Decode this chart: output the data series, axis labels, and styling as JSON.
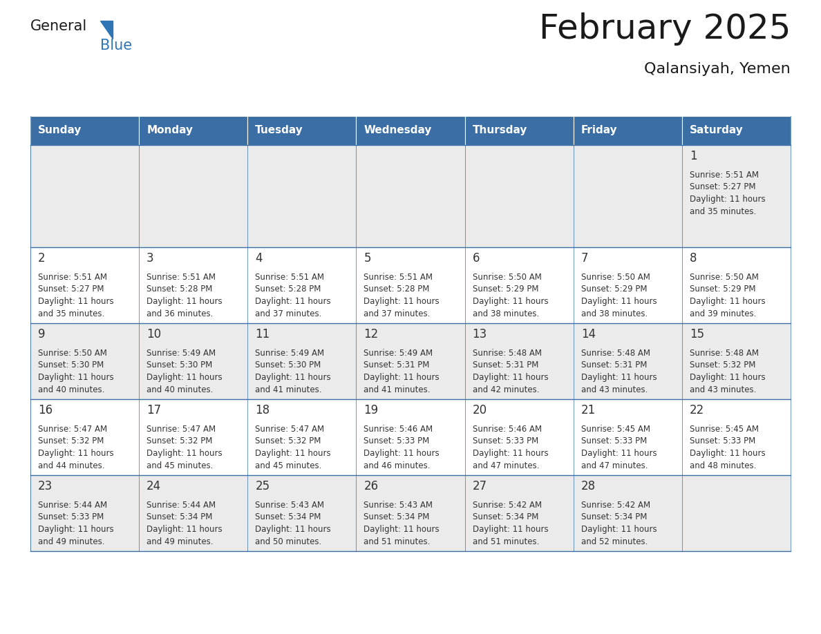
{
  "title": "February 2025",
  "subtitle": "Qalansiyah, Yemen",
  "days_of_week": [
    "Sunday",
    "Monday",
    "Tuesday",
    "Wednesday",
    "Thursday",
    "Friday",
    "Saturday"
  ],
  "header_bg": "#3A6EA5",
  "header_text_color": "#FFFFFF",
  "cell_bg_gray": "#EBEBEB",
  "cell_bg_white": "#FFFFFF",
  "cell_border_color": "#3A6EA5",
  "text_color": "#333333",
  "title_color": "#1a1a1a",
  "logo_general_color": "#1a1a1a",
  "logo_blue_color": "#2E75B6",
  "logo_triangle_color": "#2E75B6",
  "calendar_data": [
    [
      null,
      null,
      null,
      null,
      null,
      null,
      {
        "day": 1,
        "sunrise": "5:51 AM",
        "sunset": "5:27 PM",
        "daylight": "11 hours\nand 35 minutes."
      }
    ],
    [
      {
        "day": 2,
        "sunrise": "5:51 AM",
        "sunset": "5:27 PM",
        "daylight": "11 hours\nand 35 minutes."
      },
      {
        "day": 3,
        "sunrise": "5:51 AM",
        "sunset": "5:28 PM",
        "daylight": "11 hours\nand 36 minutes."
      },
      {
        "day": 4,
        "sunrise": "5:51 AM",
        "sunset": "5:28 PM",
        "daylight": "11 hours\nand 37 minutes."
      },
      {
        "day": 5,
        "sunrise": "5:51 AM",
        "sunset": "5:28 PM",
        "daylight": "11 hours\nand 37 minutes."
      },
      {
        "day": 6,
        "sunrise": "5:50 AM",
        "sunset": "5:29 PM",
        "daylight": "11 hours\nand 38 minutes."
      },
      {
        "day": 7,
        "sunrise": "5:50 AM",
        "sunset": "5:29 PM",
        "daylight": "11 hours\nand 38 minutes."
      },
      {
        "day": 8,
        "sunrise": "5:50 AM",
        "sunset": "5:29 PM",
        "daylight": "11 hours\nand 39 minutes."
      }
    ],
    [
      {
        "day": 9,
        "sunrise": "5:50 AM",
        "sunset": "5:30 PM",
        "daylight": "11 hours\nand 40 minutes."
      },
      {
        "day": 10,
        "sunrise": "5:49 AM",
        "sunset": "5:30 PM",
        "daylight": "11 hours\nand 40 minutes."
      },
      {
        "day": 11,
        "sunrise": "5:49 AM",
        "sunset": "5:30 PM",
        "daylight": "11 hours\nand 41 minutes."
      },
      {
        "day": 12,
        "sunrise": "5:49 AM",
        "sunset": "5:31 PM",
        "daylight": "11 hours\nand 41 minutes."
      },
      {
        "day": 13,
        "sunrise": "5:48 AM",
        "sunset": "5:31 PM",
        "daylight": "11 hours\nand 42 minutes."
      },
      {
        "day": 14,
        "sunrise": "5:48 AM",
        "sunset": "5:31 PM",
        "daylight": "11 hours\nand 43 minutes."
      },
      {
        "day": 15,
        "sunrise": "5:48 AM",
        "sunset": "5:32 PM",
        "daylight": "11 hours\nand 43 minutes."
      }
    ],
    [
      {
        "day": 16,
        "sunrise": "5:47 AM",
        "sunset": "5:32 PM",
        "daylight": "11 hours\nand 44 minutes."
      },
      {
        "day": 17,
        "sunrise": "5:47 AM",
        "sunset": "5:32 PM",
        "daylight": "11 hours\nand 45 minutes."
      },
      {
        "day": 18,
        "sunrise": "5:47 AM",
        "sunset": "5:32 PM",
        "daylight": "11 hours\nand 45 minutes."
      },
      {
        "day": 19,
        "sunrise": "5:46 AM",
        "sunset": "5:33 PM",
        "daylight": "11 hours\nand 46 minutes."
      },
      {
        "day": 20,
        "sunrise": "5:46 AM",
        "sunset": "5:33 PM",
        "daylight": "11 hours\nand 47 minutes."
      },
      {
        "day": 21,
        "sunrise": "5:45 AM",
        "sunset": "5:33 PM",
        "daylight": "11 hours\nand 47 minutes."
      },
      {
        "day": 22,
        "sunrise": "5:45 AM",
        "sunset": "5:33 PM",
        "daylight": "11 hours\nand 48 minutes."
      }
    ],
    [
      {
        "day": 23,
        "sunrise": "5:44 AM",
        "sunset": "5:33 PM",
        "daylight": "11 hours\nand 49 minutes."
      },
      {
        "day": 24,
        "sunrise": "5:44 AM",
        "sunset": "5:34 PM",
        "daylight": "11 hours\nand 49 minutes."
      },
      {
        "day": 25,
        "sunrise": "5:43 AM",
        "sunset": "5:34 PM",
        "daylight": "11 hours\nand 50 minutes."
      },
      {
        "day": 26,
        "sunrise": "5:43 AM",
        "sunset": "5:34 PM",
        "daylight": "11 hours\nand 51 minutes."
      },
      {
        "day": 27,
        "sunrise": "5:42 AM",
        "sunset": "5:34 PM",
        "daylight": "11 hours\nand 51 minutes."
      },
      {
        "day": 28,
        "sunrise": "5:42 AM",
        "sunset": "5:34 PM",
        "daylight": "11 hours\nand 52 minutes."
      },
      null
    ]
  ]
}
